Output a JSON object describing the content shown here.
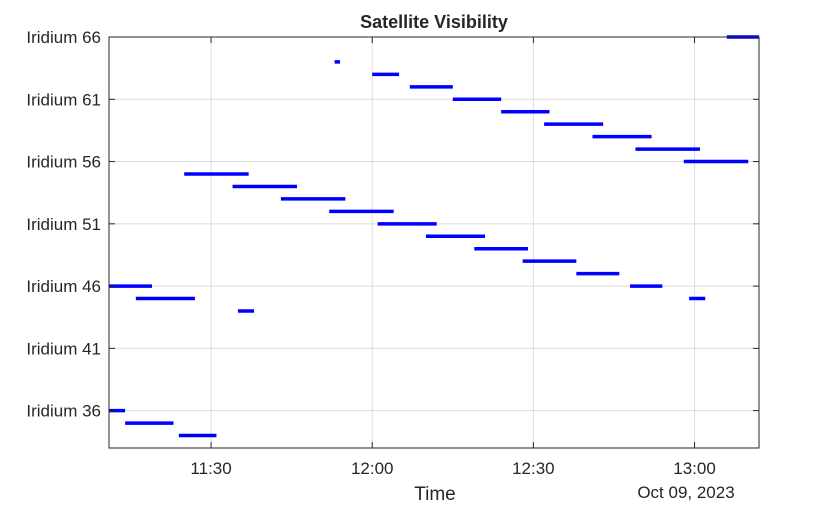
{
  "chart_data": {
    "type": "timeline",
    "title": "Satellite Visibility",
    "xlabel": "Time",
    "date_label": "Oct 09, 2023",
    "x_ticks": [
      "11:30",
      "12:00",
      "12:30",
      "13:00"
    ],
    "xlim": [
      "11:11",
      "13:12"
    ],
    "y_ticks": [
      "Iridium 36",
      "Iridium 41",
      "Iridium 46",
      "Iridium 51",
      "Iridium 56",
      "Iridium 61",
      "Iridium 66"
    ],
    "ylim": [
      33,
      66
    ],
    "grid": true,
    "bar_color": "#0000ff",
    "intervals": [
      {
        "sat": 36,
        "start": "11:11",
        "end": "11:14"
      },
      {
        "sat": 35,
        "start": "11:14",
        "end": "11:23"
      },
      {
        "sat": 34,
        "start": "11:24",
        "end": "11:31"
      },
      {
        "sat": 46,
        "start": "11:11",
        "end": "11:19"
      },
      {
        "sat": 45,
        "start": "11:16",
        "end": "11:27"
      },
      {
        "sat": 44,
        "start": "11:35",
        "end": "11:38"
      },
      {
        "sat": 55,
        "start": "11:25",
        "end": "11:37"
      },
      {
        "sat": 54,
        "start": "11:34",
        "end": "11:46"
      },
      {
        "sat": 53,
        "start": "11:43",
        "end": "11:55"
      },
      {
        "sat": 52,
        "start": "11:52",
        "end": "12:04"
      },
      {
        "sat": 51,
        "start": "12:01",
        "end": "12:12"
      },
      {
        "sat": 50,
        "start": "12:10",
        "end": "12:21"
      },
      {
        "sat": 49,
        "start": "12:19",
        "end": "12:29"
      },
      {
        "sat": 48,
        "start": "12:28",
        "end": "12:38"
      },
      {
        "sat": 47,
        "start": "12:38",
        "end": "12:46"
      },
      {
        "sat": 46,
        "start": "12:48",
        "end": "12:54"
      },
      {
        "sat": 45,
        "start": "12:59",
        "end": "13:02"
      },
      {
        "sat": 64,
        "start": "11:53",
        "end": "11:54"
      },
      {
        "sat": 63,
        "start": "12:00",
        "end": "12:05"
      },
      {
        "sat": 62,
        "start": "12:07",
        "end": "12:15"
      },
      {
        "sat": 61,
        "start": "12:15",
        "end": "12:24"
      },
      {
        "sat": 60,
        "start": "12:24",
        "end": "12:33"
      },
      {
        "sat": 59,
        "start": "12:32",
        "end": "12:43"
      },
      {
        "sat": 58,
        "start": "12:41",
        "end": "12:52"
      },
      {
        "sat": 57,
        "start": "12:49",
        "end": "13:01"
      },
      {
        "sat": 56,
        "start": "12:58",
        "end": "13:10"
      },
      {
        "sat": 66,
        "start": "13:06",
        "end": "13:12"
      }
    ]
  }
}
